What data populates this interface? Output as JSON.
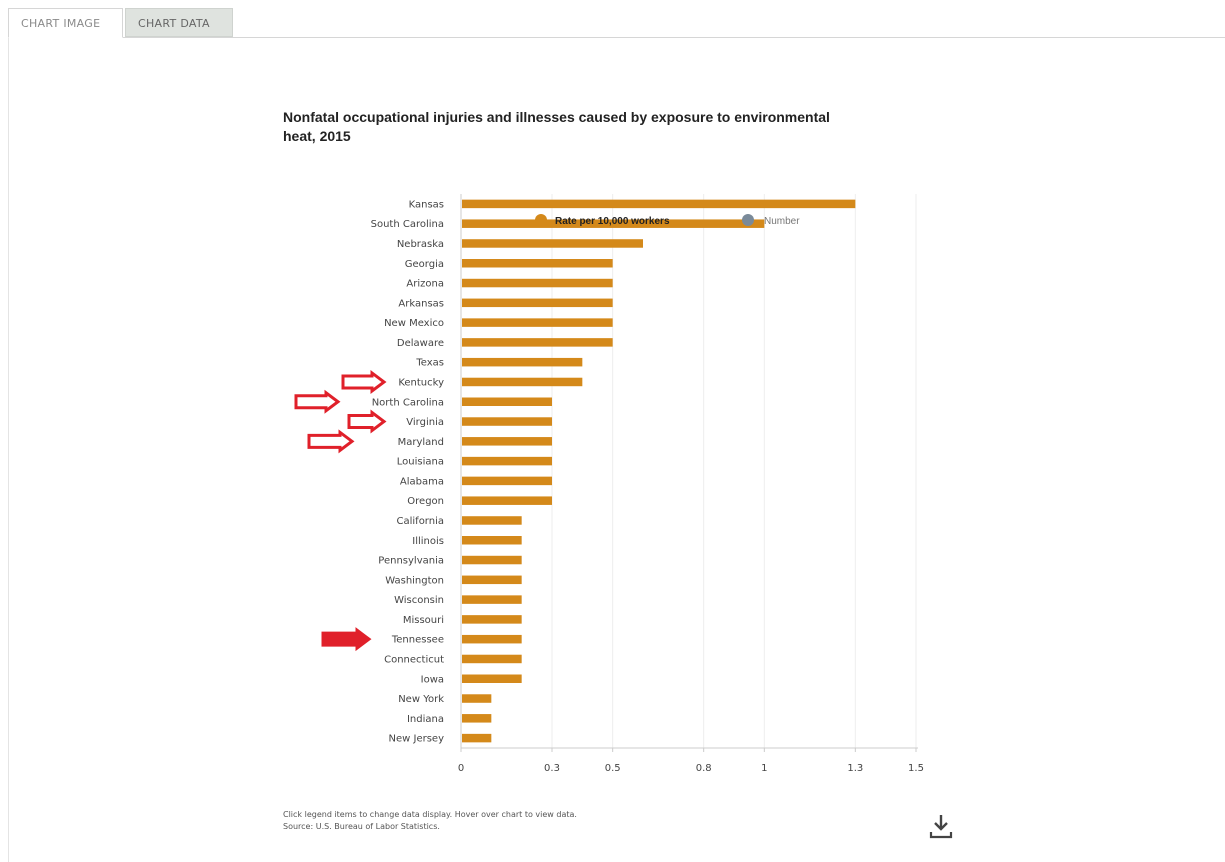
{
  "tabs": [
    {
      "label": "CHART IMAGE"
    },
    {
      "label": "CHART DATA"
    }
  ],
  "chart_data": {
    "type": "bar",
    "orientation": "horizontal",
    "title": "Nonfatal occupational injuries and illnesses caused by exposure to environmental heat, 2015",
    "categories": [
      "Kansas",
      "South Carolina",
      "Nebraska",
      "Georgia",
      "Arizona",
      "Arkansas",
      "New Mexico",
      "Delaware",
      "Texas",
      "Kentucky",
      "North Carolina",
      "Virginia",
      "Maryland",
      "Louisiana",
      "Alabama",
      "Oregon",
      "California",
      "Illinois",
      "Pennsylvania",
      "Washington",
      "Wisconsin",
      "Missouri",
      "Tennessee",
      "Connecticut",
      "Iowa",
      "New York",
      "Indiana",
      "New Jersey"
    ],
    "series": [
      {
        "name": "Rate per 10,000 workers",
        "color": "#d4891a",
        "values": [
          1.3,
          1.0,
          0.6,
          0.5,
          0.5,
          0.5,
          0.5,
          0.5,
          0.4,
          0.4,
          0.3,
          0.3,
          0.3,
          0.3,
          0.3,
          0.3,
          0.2,
          0.2,
          0.2,
          0.2,
          0.2,
          0.2,
          0.2,
          0.2,
          0.2,
          0.1,
          0.1,
          0.1
        ]
      }
    ],
    "legend": [
      {
        "label": "Rate per 10,000 workers",
        "color": "#d4891a",
        "active": true
      },
      {
        "label": "Number",
        "color": "#7a8a99",
        "active": false
      }
    ],
    "legend_position": "top-center",
    "xticks": [
      "0",
      "0.3",
      "0.5",
      "0.8",
      "1",
      "1.3",
      "1.5"
    ],
    "xlim": [
      0,
      1.5
    ],
    "grid": true,
    "highlighted_categories": [
      "Kentucky",
      "North Carolina",
      "Virginia",
      "Maryland",
      "Tennessee"
    ],
    "arrow_color": "#e0202a"
  },
  "footnote": {
    "line1": "Click legend items to change data display. Hover over chart to view data.",
    "line2": "Source: U.S. Bureau of Labor Statistics."
  },
  "download": {
    "icon": "download-icon"
  }
}
